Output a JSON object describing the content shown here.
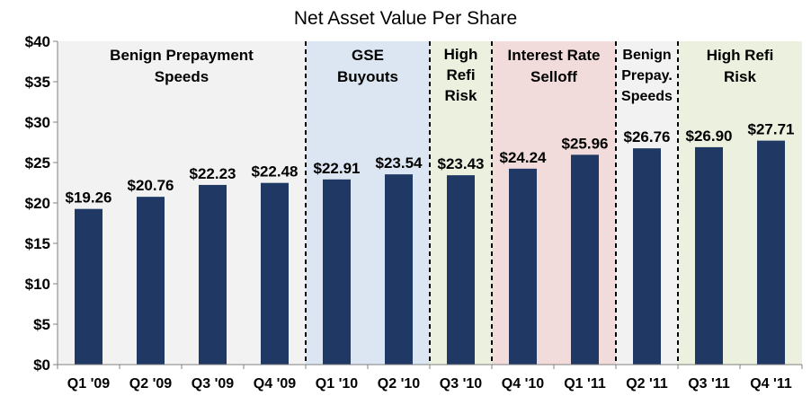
{
  "chart_data": {
    "type": "bar",
    "title": "Net Asset Value Per Share",
    "xlabel": "",
    "ylabel": "",
    "ylim": [
      0,
      40
    ],
    "yticks": [
      0,
      5,
      10,
      15,
      20,
      25,
      30,
      35,
      40
    ],
    "ytick_labels": [
      "$0",
      "$5",
      "$10",
      "$15",
      "$20",
      "$25",
      "$30",
      "$35",
      "$40"
    ],
    "categories": [
      "Q1 '09",
      "Q2 '09",
      "Q3 '09",
      "Q4 '09",
      "Q1 '10",
      "Q2 '10",
      "Q3 '10",
      "Q4 '10",
      "Q1 '11",
      "Q2 '11",
      "Q3 '11",
      "Q4 '11"
    ],
    "values": [
      19.26,
      20.76,
      22.23,
      22.48,
      22.91,
      23.54,
      23.43,
      24.24,
      25.96,
      26.76,
      26.9,
      27.71
    ],
    "value_labels": [
      "$19.26",
      "$20.76",
      "$22.23",
      "$22.48",
      "$22.91",
      "$23.54",
      "$23.43",
      "$24.24",
      "$25.96",
      "$26.76",
      "$26.90",
      "$27.71"
    ],
    "bar_color": "#1f3864",
    "regions": [
      {
        "label": [
          "Benign Prepayment",
          "Speeds"
        ],
        "start": 0,
        "end": 3,
        "color": "#f2f2f2"
      },
      {
        "label": [
          "GSE",
          "Buyouts"
        ],
        "start": 4,
        "end": 5,
        "color": "#dce6f2"
      },
      {
        "label": [
          "High",
          "Refi",
          "Risk"
        ],
        "start": 6,
        "end": 6,
        "color": "#ebf1de"
      },
      {
        "label": [
          "Interest Rate",
          "Selloff"
        ],
        "start": 7,
        "end": 8,
        "color": "#f2dcdb"
      },
      {
        "label": [
          "Benign",
          "Prepay.",
          "Speeds"
        ],
        "start": 9,
        "end": 9,
        "color": "#f2f2f2"
      },
      {
        "label": [
          "High Refi",
          "Risk"
        ],
        "start": 10,
        "end": 11,
        "color": "#ebf1de"
      }
    ]
  }
}
